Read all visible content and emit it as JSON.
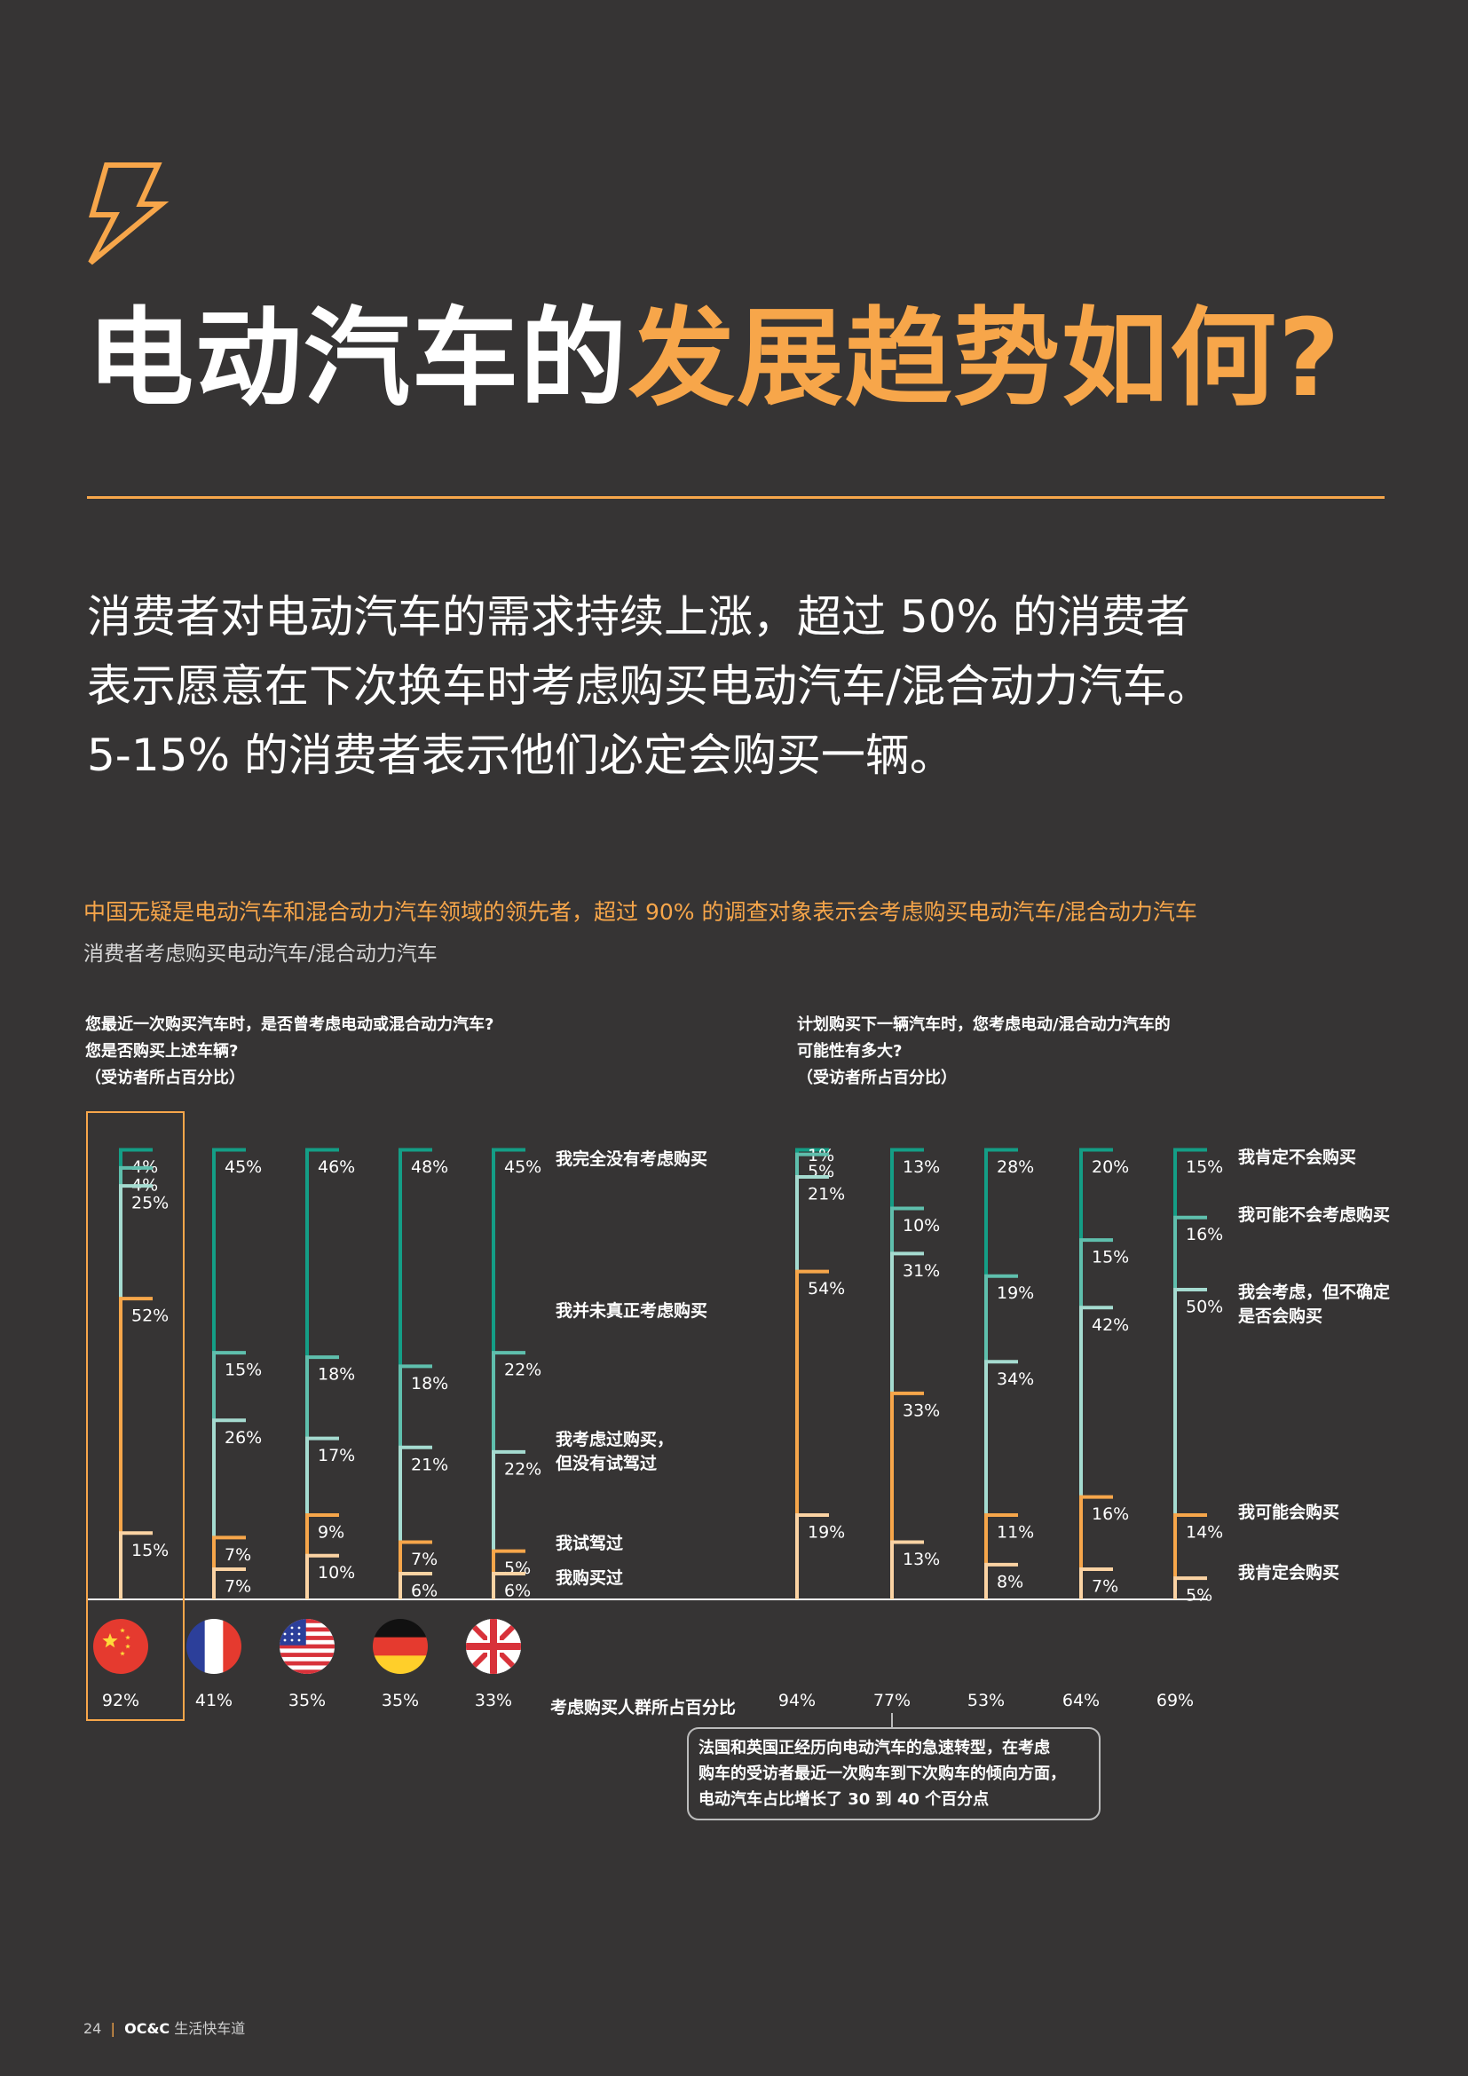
{
  "title": {
    "part1": "电动汽车的",
    "part2": "发展趋势如何?"
  },
  "intro": [
    "消费者对电动汽车的需求持续上涨，超过 50% 的消费者",
    "表示愿意在下次换车时考虑购买电动汽车/混合动力汽车。",
    "5-15% 的消费者表示他们必定会购买一辆。"
  ],
  "chart_heading": "中国无疑是电动汽车和混合动力汽车领域的领先者，超过 90% 的调查对象表示会考虑购买电动汽车/混合动力汽车",
  "chart_subheading": "消费者考虑购买电动汽车/混合动力汽车",
  "colors": {
    "background": "#363434",
    "accent": "#f7a64a"
  },
  "chart_data": [
    {
      "type": "bar",
      "subtype": "stacked-100",
      "question": [
        "您最近一次购买汽车时，是否曾考虑电动或混合动力汽车?",
        "您是否购买上述车辆?",
        "（受访者所占百分比）"
      ],
      "categories": [
        "中国",
        "法国",
        "美国",
        "德国",
        "英国"
      ],
      "flags": [
        "china-flag-icon",
        "france-flag-icon",
        "usa-flag-icon",
        "germany-flag-icon",
        "uk-flag-icon"
      ],
      "segment_labels": [
        "我完全没有考虑购买",
        "我并未真正考虑购买",
        "我考虑过购买，但没有试驾过",
        "我试驾过",
        "我购买过"
      ],
      "segment_colors": [
        "#149e86",
        "#5fbfad",
        "#a5dbd0",
        "#f7a64a",
        "#fbd3a3"
      ],
      "values": [
        [
          4,
          4,
          25,
          52,
          15
        ],
        [
          45,
          15,
          26,
          7,
          7
        ],
        [
          46,
          18,
          17,
          9,
          10
        ],
        [
          48,
          18,
          21,
          7,
          6
        ],
        [
          45,
          22,
          22,
          5,
          6
        ]
      ],
      "totals": [
        "92%",
        "41%",
        "35%",
        "35%",
        "33%"
      ],
      "totals_label": "考虑购买人群所占百分比"
    },
    {
      "type": "bar",
      "subtype": "stacked-100",
      "question": [
        "计划购买下一辆汽车时，您考虑电动/混合动力汽车的",
        "可能性有多大?",
        "（受访者所占百分比）"
      ],
      "categories": [
        "中国",
        "法国",
        "美国",
        "德国",
        "英国"
      ],
      "flags": [
        "china-flag-icon",
        "france-flag-icon",
        "usa-flag-icon",
        "germany-flag-icon",
        "uk-flag-icon"
      ],
      "segment_labels": [
        "我肯定不会购买",
        "我可能不会考虑购买",
        "我会考虑，但不确定是否会购买",
        "我可能会购买",
        "我肯定会购买"
      ],
      "segment_colors": [
        "#149e86",
        "#5fbfad",
        "#a5dbd0",
        "#f7a64a",
        "#fbd3a3"
      ],
      "values": [
        [
          1,
          5,
          21,
          54,
          19
        ],
        [
          13,
          10,
          31,
          33,
          13
        ],
        [
          28,
          19,
          34,
          11,
          8
        ],
        [
          20,
          15,
          42,
          16,
          7
        ],
        [
          15,
          16,
          50,
          14,
          5
        ]
      ],
      "totals": [
        "94%",
        "77%",
        "53%",
        "64%",
        "69%"
      ],
      "callout": [
        "法国和英国正经历向电动汽车的急速转型，在考虑",
        "购车的受访者最近一次购车到下次购车的倾向方面，",
        "电动汽车占比增长了 30 到 40 个百分点"
      ]
    }
  ],
  "footer": {
    "page": "24",
    "brand": "OC&C",
    "tagline": "生活快车道"
  }
}
